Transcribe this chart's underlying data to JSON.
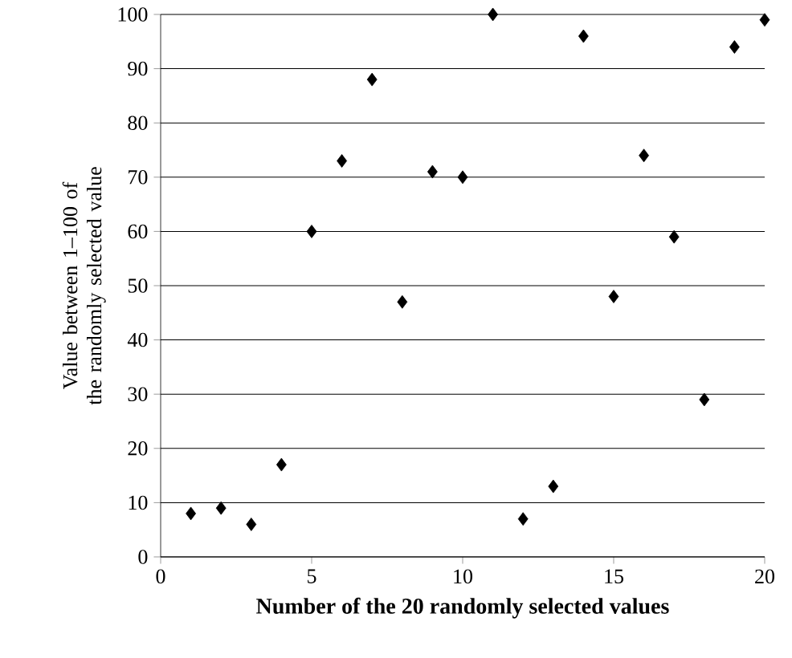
{
  "chart_data": {
    "type": "scatter",
    "xlabel": "**Number of the 20 randomly selected values**",
    "ylabel": "Value between 1–100 of the randomly selected value",
    "x": [
      1,
      2,
      3,
      4,
      5,
      6,
      7,
      8,
      9,
      10,
      11,
      12,
      13,
      14,
      15,
      16,
      17,
      18,
      19,
      20
    ],
    "values": [
      8,
      9,
      6,
      17,
      60,
      73,
      88,
      47,
      71,
      70,
      100,
      7,
      13,
      96,
      48,
      74,
      59,
      29,
      94,
      99
    ],
    "color": "#000000",
    "marker": "diamond",
    "xlim": [
      0,
      20
    ],
    "xticks": [
      0,
      5,
      10,
      15,
      20
    ],
    "ylim": [
      0,
      100
    ],
    "yticks": [
      0,
      10,
      20,
      30,
      40,
      50,
      60,
      70,
      80,
      90,
      100
    ],
    "grid": "y"
  }
}
